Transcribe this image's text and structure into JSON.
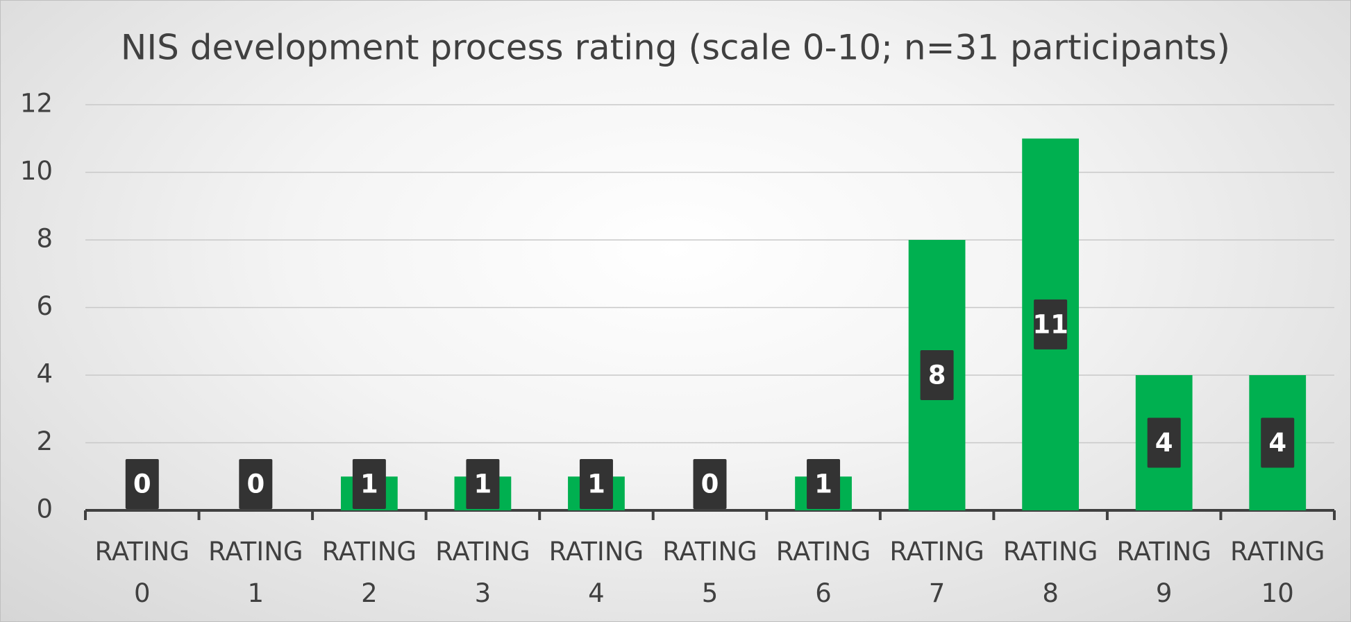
{
  "chart_data": {
    "type": "bar",
    "title": "NIS development process rating (scale 0-10; n=31 participants)",
    "categories": [
      "RATING 0",
      "RATING 1",
      "RATING 2",
      "RATING 3",
      "RATING 4",
      "RATING 5",
      "RATING 6",
      "RATING 7",
      "RATING 8",
      "RATING 9",
      "RATING 10"
    ],
    "values": [
      0,
      0,
      1,
      1,
      1,
      0,
      1,
      8,
      11,
      4,
      4
    ],
    "color": "#00b050",
    "ylim": [
      0,
      12
    ],
    "yticks": [
      0,
      2,
      4,
      6,
      8,
      10,
      12
    ],
    "grid": true
  }
}
